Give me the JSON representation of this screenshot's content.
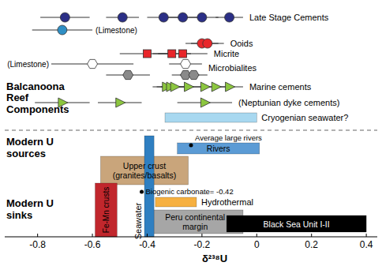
{
  "chart_data": {
    "type": "range",
    "xlabel": "δ²³⁸U",
    "xlim": [
      -0.92,
      0.44
    ],
    "xticks": [
      -0.8,
      -0.6,
      -0.4,
      -0.2,
      0,
      0.2,
      0.4
    ],
    "sections": [
      {
        "lines": [
          "Balcanoona",
          "Reef",
          "Components"
        ]
      },
      {
        "lines": [
          "Modern U",
          "sources"
        ]
      },
      {
        "lines": [
          "Modern U",
          "sinks"
        ]
      }
    ],
    "series": [
      {
        "label": "Late Stage Cements",
        "color": "#2b2f86",
        "marker": "circle",
        "values": [
          -0.7,
          -0.49,
          -0.34,
          -0.27,
          -0.2,
          -0.1
        ],
        "errors": [
          0.09,
          0.06,
          0.06,
          0.06,
          0.06,
          0.05
        ]
      },
      {
        "sublabel": "(Limestone)",
        "color": "#2f8fc4",
        "marker": "circle",
        "values": [
          -0.71
        ],
        "errors": [
          0.11
        ]
      },
      {
        "label": "Ooids",
        "color": "#e8262a",
        "marker": "circle",
        "values": [
          -0.2,
          -0.18
        ],
        "errors": [
          0.06,
          0.06
        ]
      },
      {
        "label": "Micrite",
        "color": "#e8262a",
        "marker": "square",
        "values": [
          -0.4,
          -0.31,
          -0.27
        ],
        "errors": [
          0.1,
          0.07,
          0.09
        ]
      },
      {
        "label": "Microbialites",
        "sublabel": "(Limestone)",
        "color": "#ffffff",
        "marker": "hexagon",
        "values": [
          -0.6,
          -0.26
        ],
        "errors": [
          0.15,
          0.06
        ]
      },
      {
        "color": "#8a8a8a",
        "marker": "hexagon",
        "values": [
          -0.47,
          -0.26,
          -0.23
        ],
        "errors": [
          0.08,
          0.05,
          0.05
        ]
      },
      {
        "label": "Marine cements",
        "color": "#8cc63f",
        "marker": "triangle",
        "values": [
          -0.33,
          -0.315,
          -0.3,
          -0.25,
          -0.19,
          -0.15,
          -0.1
        ],
        "errors": [
          0.05,
          0.05,
          0.05,
          0.05,
          0.05,
          0.05,
          0.05
        ]
      },
      {
        "label": "(Neptunian dyke cements)",
        "color": "#8cc63f",
        "marker": "triangle",
        "values": [
          -0.71,
          -0.5,
          -0.19
        ],
        "errors": [
          0.1,
          0.08,
          0.1
        ]
      }
    ],
    "ranges": [
      {
        "lines": [
          "Cryogenian seawater?"
        ],
        "min": -0.335,
        "max": 0.0,
        "color": "#a8d8f0"
      },
      {
        "lines": [
          "Rivers"
        ],
        "min": -0.29,
        "max": 0.01,
        "color": "#5b9bd5"
      },
      {
        "lines": [
          "Upper crust",
          "(granites/basalts)"
        ],
        "min": -0.57,
        "max": -0.25,
        "color": "#c9a57b"
      },
      {
        "lines": [
          "Seawater"
        ],
        "min": -0.41,
        "max": -0.375,
        "color": "#2f7fc1"
      },
      {
        "lines": [
          "Hydrothermal"
        ],
        "min": -0.37,
        "max": -0.22,
        "color": "#f6b040"
      },
      {
        "lines": [
          "Peru continental",
          "margin"
        ],
        "min": -0.4,
        "max": -0.05,
        "color": "#a6a6a6"
      },
      {
        "lines": [
          "Black Sea Unit I-II"
        ],
        "min": -0.11,
        "max": 0.4,
        "color": "#000000"
      },
      {
        "lines": [
          "Fe-Mn crusts"
        ],
        "min": -0.59,
        "max": -0.51,
        "color": "#c1272d"
      }
    ],
    "points": [
      {
        "label": "Average large rivers",
        "value": -0.24,
        "color": "#000000"
      },
      {
        "label": "Biogenic carbonate= -0.42",
        "value": -0.42,
        "color": "#000000"
      }
    ]
  }
}
